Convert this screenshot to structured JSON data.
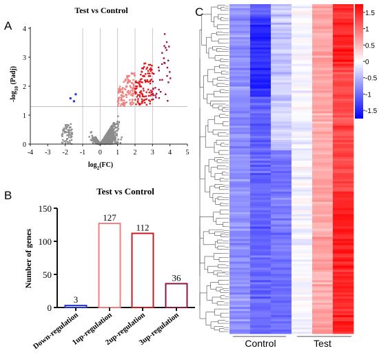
{
  "chart_data": [
    {
      "panel": "A",
      "type": "scatter",
      "title": "Test vs Control",
      "xlabel": "log2(FC)",
      "ylabel": "-log10 (Padj)",
      "xlim": [
        -4,
        5
      ],
      "ylim": [
        0,
        4
      ],
      "xticks": [
        "-4",
        "-3",
        "-2",
        "-1",
        "0",
        "1",
        "2",
        "3",
        "4",
        "5"
      ],
      "yticks": [
        "0",
        "1",
        "2",
        "3",
        "4"
      ],
      "threshold_y": 1.3,
      "colors": {
        "none": "#8c8c8c",
        "down": "#1f2fd6",
        "up1": "#f08080",
        "up2": "#e0161c",
        "up3": "#a01040"
      },
      "series": [
        {
          "name": "down",
          "points": [
            [
              -1.7,
              1.58
            ],
            [
              -1.5,
              1.48
            ],
            [
              -1.4,
              1.72
            ]
          ]
        }
      ]
    },
    {
      "panel": "B",
      "type": "bar",
      "title": "Test vs Control",
      "ylabel": "Number of genes",
      "ylim": [
        0,
        150
      ],
      "yticks": [
        "0",
        "50",
        "100",
        "150"
      ],
      "categories": [
        "Down-regulation",
        "1up-regulation",
        "2up-regulation",
        "3up-regulation"
      ],
      "values": [
        3,
        127,
        112,
        36
      ],
      "value_labels": [
        "3",
        "127",
        "112",
        "36"
      ],
      "colors": [
        "#2233cc",
        "#f08080",
        "#cc1a22",
        "#8c1640"
      ]
    },
    {
      "panel": "C",
      "type": "heatmap",
      "group_labels": [
        "Control",
        "Test"
      ],
      "colorbar_ticks": [
        "1.5",
        "1",
        "0.5",
        "0",
        "-0.5",
        "-1",
        "-1.5"
      ],
      "colorbar_range": [
        -1.75,
        1.75
      ],
      "colorscale": [
        "#0000ff",
        "#ffffff",
        "#ff0000"
      ]
    }
  ]
}
